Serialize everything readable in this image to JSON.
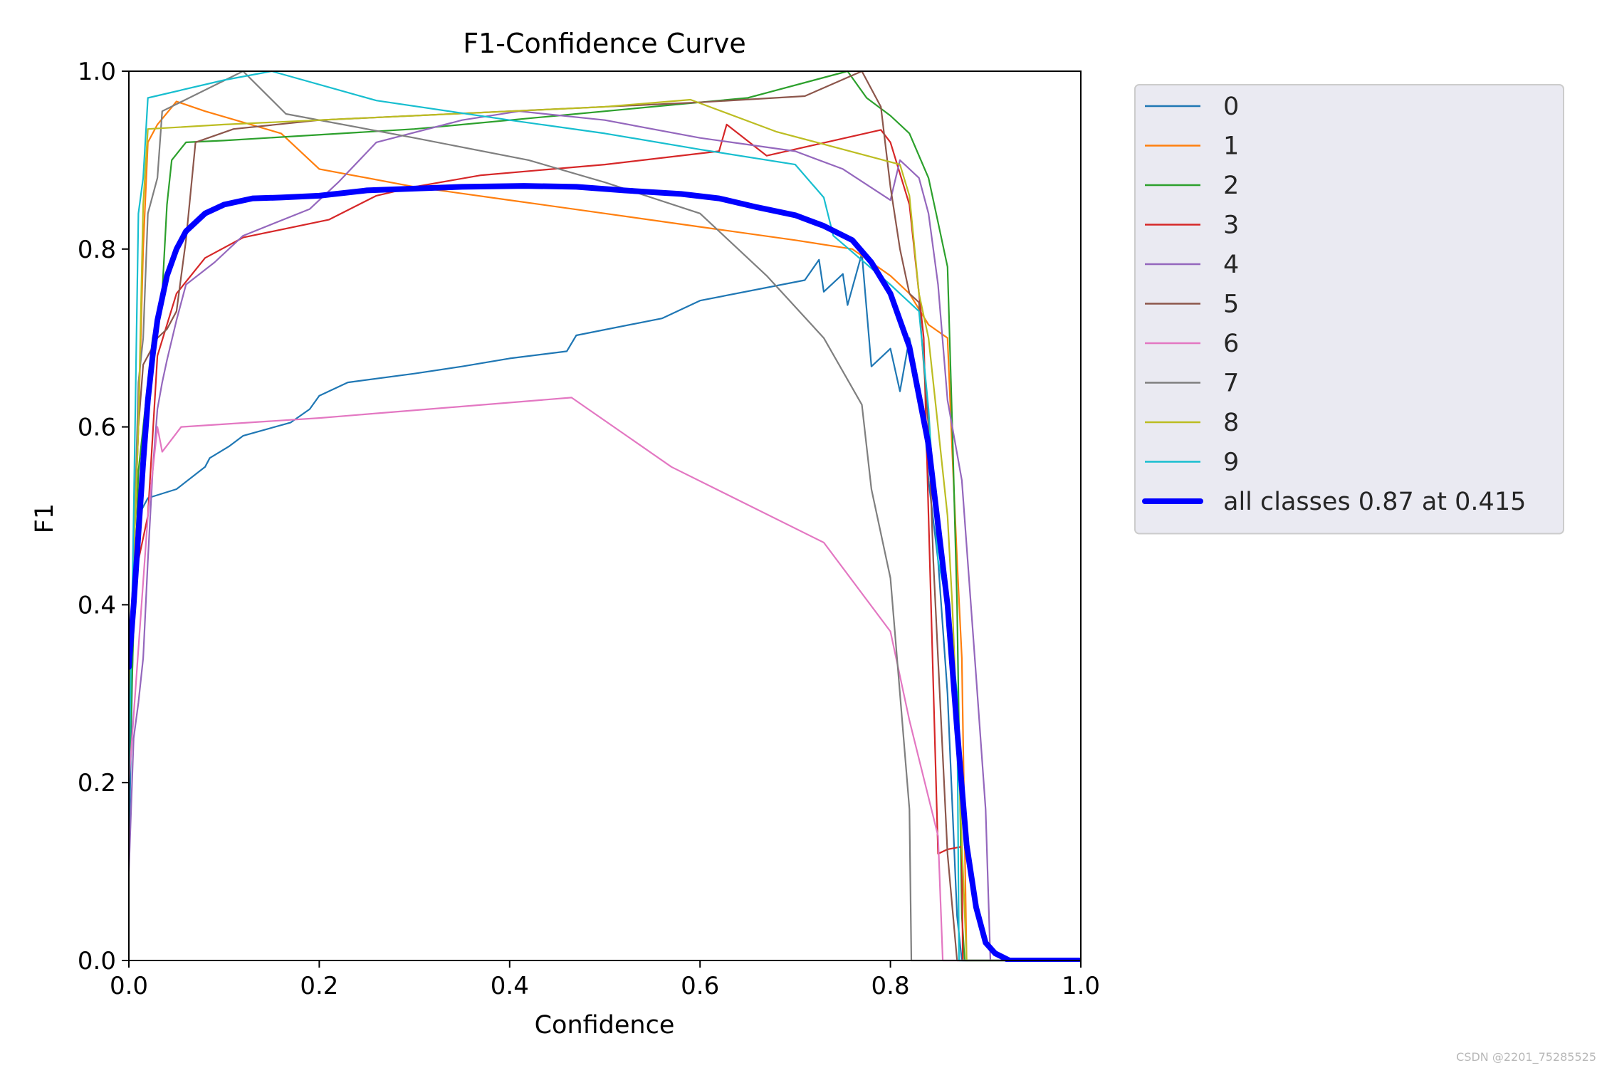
{
  "watermark": "CSDN @2201_75285525",
  "chart_data": {
    "type": "line",
    "title": "F1-Confidence Curve",
    "xlabel": "Confidence",
    "ylabel": "F1",
    "xlim": [
      0,
      1
    ],
    "ylim": [
      0,
      1
    ],
    "xticks": [
      "0.0",
      "0.2",
      "0.4",
      "0.6",
      "0.8",
      "1.0"
    ],
    "yticks": [
      "0.0",
      "0.2",
      "0.4",
      "0.6",
      "0.8",
      "1.0"
    ],
    "grid": false,
    "legend_position": "outside-right-top",
    "series": [
      {
        "name": "0",
        "color": "#1f77b4",
        "points": [
          [
            0.0,
            0.12
          ],
          [
            0.005,
            0.4
          ],
          [
            0.01,
            0.5
          ],
          [
            0.02,
            0.52
          ],
          [
            0.05,
            0.53
          ],
          [
            0.08,
            0.555
          ],
          [
            0.085,
            0.565
          ],
          [
            0.105,
            0.578
          ],
          [
            0.12,
            0.59
          ],
          [
            0.17,
            0.605
          ],
          [
            0.19,
            0.62
          ],
          [
            0.2,
            0.635
          ],
          [
            0.23,
            0.65
          ],
          [
            0.3,
            0.66
          ],
          [
            0.35,
            0.668
          ],
          [
            0.4,
            0.677
          ],
          [
            0.46,
            0.685
          ],
          [
            0.47,
            0.703
          ],
          [
            0.56,
            0.722
          ],
          [
            0.6,
            0.742
          ],
          [
            0.71,
            0.765
          ],
          [
            0.725,
            0.788
          ],
          [
            0.73,
            0.752
          ],
          [
            0.75,
            0.772
          ],
          [
            0.755,
            0.737
          ],
          [
            0.77,
            0.795
          ],
          [
            0.78,
            0.668
          ],
          [
            0.8,
            0.688
          ],
          [
            0.81,
            0.64
          ],
          [
            0.82,
            0.7
          ],
          [
            0.835,
            0.62
          ],
          [
            0.84,
            0.54
          ],
          [
            0.85,
            0.45
          ],
          [
            0.86,
            0.3
          ],
          [
            0.87,
            0.05
          ],
          [
            0.875,
            0.0
          ],
          [
            1.0,
            0.0
          ]
        ]
      },
      {
        "name": "1",
        "color": "#ff7f0e",
        "points": [
          [
            0.0,
            0.3
          ],
          [
            0.01,
            0.6
          ],
          [
            0.015,
            0.8
          ],
          [
            0.02,
            0.92
          ],
          [
            0.03,
            0.94
          ],
          [
            0.05,
            0.966
          ],
          [
            0.08,
            0.955
          ],
          [
            0.16,
            0.93
          ],
          [
            0.2,
            0.89
          ],
          [
            0.3,
            0.87
          ],
          [
            0.4,
            0.855
          ],
          [
            0.5,
            0.84
          ],
          [
            0.6,
            0.825
          ],
          [
            0.7,
            0.81
          ],
          [
            0.76,
            0.8
          ],
          [
            0.8,
            0.77
          ],
          [
            0.82,
            0.75
          ],
          [
            0.84,
            0.715
          ],
          [
            0.86,
            0.7
          ],
          [
            0.865,
            0.57
          ],
          [
            0.87,
            0.45
          ],
          [
            0.875,
            0.34
          ],
          [
            0.88,
            0.0
          ],
          [
            1.0,
            0.0
          ]
        ]
      },
      {
        "name": "2",
        "color": "#2ca02c",
        "points": [
          [
            0.0,
            0.2
          ],
          [
            0.01,
            0.55
          ],
          [
            0.015,
            0.6
          ],
          [
            0.025,
            0.7
          ],
          [
            0.035,
            0.75
          ],
          [
            0.04,
            0.85
          ],
          [
            0.045,
            0.9
          ],
          [
            0.06,
            0.92
          ],
          [
            0.1,
            0.922
          ],
          [
            0.3,
            0.935
          ],
          [
            0.45,
            0.95
          ],
          [
            0.6,
            0.965
          ],
          [
            0.65,
            0.97
          ],
          [
            0.72,
            0.99
          ],
          [
            0.755,
            1.0
          ],
          [
            0.775,
            0.97
          ],
          [
            0.8,
            0.95
          ],
          [
            0.82,
            0.93
          ],
          [
            0.84,
            0.88
          ],
          [
            0.85,
            0.83
          ],
          [
            0.86,
            0.78
          ],
          [
            0.865,
            0.6
          ],
          [
            0.87,
            0.4
          ],
          [
            0.875,
            0.05
          ],
          [
            0.878,
            0.0
          ],
          [
            1.0,
            0.0
          ]
        ]
      },
      {
        "name": "3",
        "color": "#d62728",
        "points": [
          [
            0.0,
            0.3
          ],
          [
            0.01,
            0.45
          ],
          [
            0.02,
            0.5
          ],
          [
            0.03,
            0.68
          ],
          [
            0.05,
            0.75
          ],
          [
            0.08,
            0.79
          ],
          [
            0.12,
            0.813
          ],
          [
            0.21,
            0.833
          ],
          [
            0.26,
            0.86
          ],
          [
            0.3,
            0.87
          ],
          [
            0.37,
            0.883
          ],
          [
            0.5,
            0.895
          ],
          [
            0.62,
            0.91
          ],
          [
            0.628,
            0.94
          ],
          [
            0.67,
            0.905
          ],
          [
            0.79,
            0.934
          ],
          [
            0.8,
            0.92
          ],
          [
            0.82,
            0.85
          ],
          [
            0.835,
            0.7
          ],
          [
            0.84,
            0.5
          ],
          [
            0.85,
            0.12
          ],
          [
            0.86,
            0.125
          ],
          [
            0.875,
            0.128
          ],
          [
            0.876,
            0.0
          ],
          [
            1.0,
            0.0
          ]
        ]
      },
      {
        "name": "4",
        "color": "#9467bd",
        "points": [
          [
            0.0,
            0.1
          ],
          [
            0.005,
            0.25
          ],
          [
            0.01,
            0.29
          ],
          [
            0.015,
            0.34
          ],
          [
            0.02,
            0.45
          ],
          [
            0.025,
            0.55
          ],
          [
            0.03,
            0.62
          ],
          [
            0.035,
            0.65
          ],
          [
            0.04,
            0.675
          ],
          [
            0.05,
            0.72
          ],
          [
            0.06,
            0.76
          ],
          [
            0.09,
            0.785
          ],
          [
            0.12,
            0.815
          ],
          [
            0.19,
            0.845
          ],
          [
            0.22,
            0.875
          ],
          [
            0.26,
            0.92
          ],
          [
            0.35,
            0.945
          ],
          [
            0.41,
            0.955
          ],
          [
            0.5,
            0.945
          ],
          [
            0.6,
            0.925
          ],
          [
            0.7,
            0.91
          ],
          [
            0.75,
            0.89
          ],
          [
            0.8,
            0.855
          ],
          [
            0.81,
            0.9
          ],
          [
            0.83,
            0.88
          ],
          [
            0.84,
            0.84
          ],
          [
            0.85,
            0.76
          ],
          [
            0.86,
            0.63
          ],
          [
            0.875,
            0.54
          ],
          [
            0.89,
            0.32
          ],
          [
            0.9,
            0.17
          ],
          [
            0.905,
            0.0
          ],
          [
            1.0,
            0.0
          ]
        ]
      },
      {
        "name": "5",
        "color": "#8c564b",
        "points": [
          [
            0.0,
            0.3
          ],
          [
            0.01,
            0.6
          ],
          [
            0.015,
            0.67
          ],
          [
            0.03,
            0.7
          ],
          [
            0.04,
            0.71
          ],
          [
            0.05,
            0.73
          ],
          [
            0.06,
            0.81
          ],
          [
            0.07,
            0.92
          ],
          [
            0.11,
            0.935
          ],
          [
            0.2,
            0.945
          ],
          [
            0.4,
            0.955
          ],
          [
            0.6,
            0.965
          ],
          [
            0.71,
            0.972
          ],
          [
            0.77,
            1.0
          ],
          [
            0.79,
            0.96
          ],
          [
            0.8,
            0.87
          ],
          [
            0.81,
            0.8
          ],
          [
            0.82,
            0.75
          ],
          [
            0.83,
            0.74
          ],
          [
            0.84,
            0.6
          ],
          [
            0.845,
            0.45
          ],
          [
            0.86,
            0.12
          ],
          [
            0.87,
            0.0
          ],
          [
            1.0,
            0.0
          ]
        ]
      },
      {
        "name": "6",
        "color": "#e377c2",
        "points": [
          [
            0.0,
            0.2
          ],
          [
            0.02,
            0.5
          ],
          [
            0.03,
            0.6
          ],
          [
            0.035,
            0.572
          ],
          [
            0.055,
            0.6
          ],
          [
            0.2,
            0.61
          ],
          [
            0.465,
            0.633
          ],
          [
            0.57,
            0.555
          ],
          [
            0.73,
            0.47
          ],
          [
            0.8,
            0.37
          ],
          [
            0.82,
            0.27
          ],
          [
            0.85,
            0.14
          ],
          [
            0.855,
            0.0
          ],
          [
            1.0,
            0.0
          ]
        ]
      },
      {
        "name": "7",
        "color": "#7f7f7f",
        "points": [
          [
            0.0,
            0.25
          ],
          [
            0.01,
            0.65
          ],
          [
            0.015,
            0.7
          ],
          [
            0.02,
            0.84
          ],
          [
            0.03,
            0.88
          ],
          [
            0.035,
            0.955
          ],
          [
            0.12,
            1.0
          ],
          [
            0.165,
            0.952
          ],
          [
            0.3,
            0.925
          ],
          [
            0.42,
            0.9
          ],
          [
            0.5,
            0.875
          ],
          [
            0.6,
            0.84
          ],
          [
            0.67,
            0.77
          ],
          [
            0.73,
            0.7
          ],
          [
            0.77,
            0.625
          ],
          [
            0.78,
            0.53
          ],
          [
            0.8,
            0.43
          ],
          [
            0.81,
            0.3
          ],
          [
            0.82,
            0.17
          ],
          [
            0.822,
            0.0
          ],
          [
            1.0,
            0.0
          ]
        ]
      },
      {
        "name": "8",
        "color": "#bcbd22",
        "points": [
          [
            0.0,
            0.3
          ],
          [
            0.01,
            0.6
          ],
          [
            0.015,
            0.85
          ],
          [
            0.02,
            0.935
          ],
          [
            0.1,
            0.94
          ],
          [
            0.3,
            0.95
          ],
          [
            0.5,
            0.96
          ],
          [
            0.59,
            0.968
          ],
          [
            0.68,
            0.932
          ],
          [
            0.74,
            0.915
          ],
          [
            0.81,
            0.895
          ],
          [
            0.82,
            0.86
          ],
          [
            0.83,
            0.75
          ],
          [
            0.84,
            0.7
          ],
          [
            0.85,
            0.6
          ],
          [
            0.86,
            0.5
          ],
          [
            0.865,
            0.4
          ],
          [
            0.88,
            0.0
          ],
          [
            1.0,
            0.0
          ]
        ]
      },
      {
        "name": "9",
        "color": "#17becf",
        "points": [
          [
            0.0,
            0.2
          ],
          [
            0.005,
            0.5
          ],
          [
            0.01,
            0.84
          ],
          [
            0.015,
            0.88
          ],
          [
            0.02,
            0.97
          ],
          [
            0.1,
            0.99
          ],
          [
            0.15,
            1.0
          ],
          [
            0.26,
            0.967
          ],
          [
            0.4,
            0.945
          ],
          [
            0.5,
            0.93
          ],
          [
            0.6,
            0.912
          ],
          [
            0.7,
            0.895
          ],
          [
            0.73,
            0.858
          ],
          [
            0.74,
            0.815
          ],
          [
            0.8,
            0.76
          ],
          [
            0.83,
            0.73
          ],
          [
            0.84,
            0.62
          ],
          [
            0.85,
            0.45
          ],
          [
            0.86,
            0.4
          ],
          [
            0.87,
            0.3
          ],
          [
            0.872,
            0.0
          ],
          [
            1.0,
            0.0
          ]
        ]
      },
      {
        "name": "all classes 0.87 at 0.415",
        "color": "#0000ff",
        "points": [
          [
            0.0,
            0.33
          ],
          [
            0.005,
            0.4
          ],
          [
            0.01,
            0.48
          ],
          [
            0.015,
            0.56
          ],
          [
            0.02,
            0.63
          ],
          [
            0.025,
            0.68
          ],
          [
            0.03,
            0.72
          ],
          [
            0.04,
            0.77
          ],
          [
            0.05,
            0.8
          ],
          [
            0.06,
            0.82
          ],
          [
            0.08,
            0.84
          ],
          [
            0.1,
            0.85
          ],
          [
            0.13,
            0.857
          ],
          [
            0.16,
            0.858
          ],
          [
            0.2,
            0.86
          ],
          [
            0.25,
            0.866
          ],
          [
            0.3,
            0.868
          ],
          [
            0.35,
            0.87
          ],
          [
            0.415,
            0.871
          ],
          [
            0.47,
            0.87
          ],
          [
            0.52,
            0.866
          ],
          [
            0.58,
            0.862
          ],
          [
            0.62,
            0.857
          ],
          [
            0.66,
            0.847
          ],
          [
            0.7,
            0.838
          ],
          [
            0.73,
            0.826
          ],
          [
            0.76,
            0.81
          ],
          [
            0.78,
            0.785
          ],
          [
            0.8,
            0.75
          ],
          [
            0.82,
            0.69
          ],
          [
            0.84,
            0.58
          ],
          [
            0.86,
            0.4
          ],
          [
            0.87,
            0.26
          ],
          [
            0.88,
            0.13
          ],
          [
            0.89,
            0.06
          ],
          [
            0.9,
            0.02
          ],
          [
            0.91,
            0.008
          ],
          [
            0.925,
            0.0
          ],
          [
            1.0,
            0.0
          ]
        ]
      }
    ]
  }
}
